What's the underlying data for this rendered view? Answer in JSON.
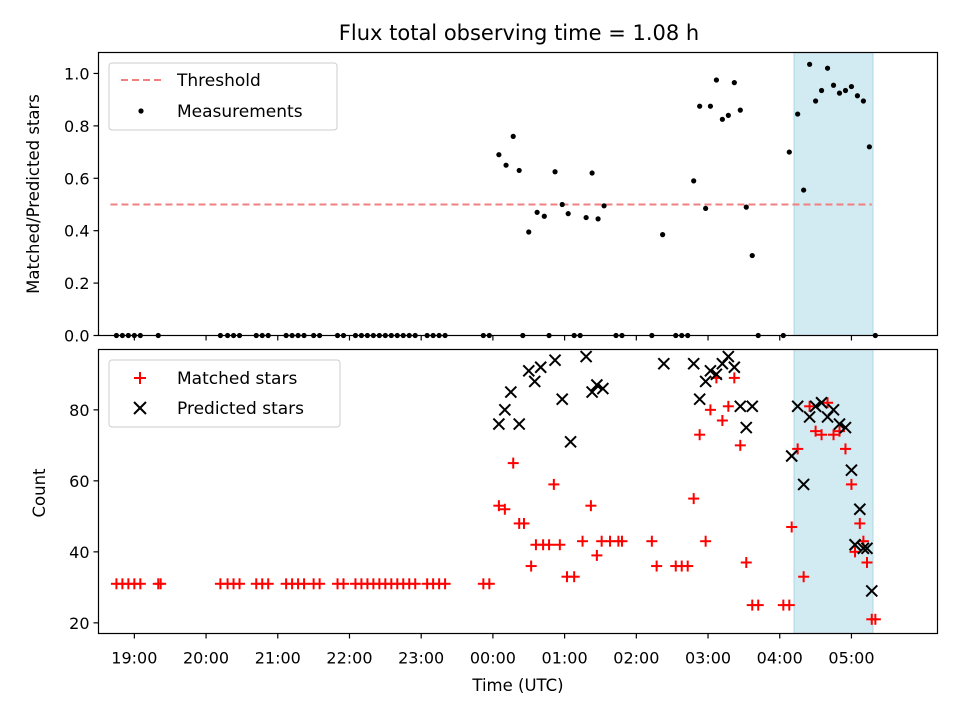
{
  "chart_data": [
    {
      "type": "scatter",
      "title": "Flux total observing time = 1.08 h",
      "ylabel": "Matched/Predicted stars",
      "ylim": [
        0,
        1.08
      ],
      "yticks": [
        "0.0",
        "0.2",
        "0.4",
        "0.6",
        "0.8",
        "1.0"
      ],
      "threshold": {
        "name": "Threshold",
        "value": 0.5,
        "x_range": [
          "18:40",
          "05:17"
        ],
        "color": "#f08080"
      },
      "highlight_span": {
        "x": [
          "04:12",
          "05:18"
        ],
        "color": "#add8e6"
      },
      "legend": "top-left",
      "series": [
        {
          "name": "Measurements",
          "color": "#000000",
          "points": [
            [
              "18:45",
              0
            ],
            [
              "18:50",
              0
            ],
            [
              "18:55",
              0
            ],
            [
              "19:00",
              0
            ],
            [
              "19:05",
              0
            ],
            [
              "19:20",
              0
            ],
            [
              "20:12",
              0
            ],
            [
              "20:18",
              0
            ],
            [
              "20:23",
              0
            ],
            [
              "20:28",
              0
            ],
            [
              "20:42",
              0
            ],
            [
              "20:47",
              0
            ],
            [
              "20:52",
              0
            ],
            [
              "21:07",
              0
            ],
            [
              "21:12",
              0
            ],
            [
              "21:17",
              0
            ],
            [
              "21:22",
              0
            ],
            [
              "21:30",
              0
            ],
            [
              "21:35",
              0
            ],
            [
              "21:50",
              0
            ],
            [
              "21:55",
              0
            ],
            [
              "22:05",
              0
            ],
            [
              "22:10",
              0
            ],
            [
              "22:15",
              0
            ],
            [
              "22:20",
              0
            ],
            [
              "22:25",
              0
            ],
            [
              "22:30",
              0
            ],
            [
              "22:35",
              0
            ],
            [
              "22:40",
              0
            ],
            [
              "22:45",
              0
            ],
            [
              "22:50",
              0
            ],
            [
              "22:55",
              0
            ],
            [
              "23:05",
              0
            ],
            [
              "23:10",
              0
            ],
            [
              "23:15",
              0
            ],
            [
              "23:20",
              0
            ],
            [
              "23:52",
              0
            ],
            [
              "23:57",
              0
            ],
            [
              "00:05",
              0.69
            ],
            [
              "00:11",
              0.65
            ],
            [
              "00:17",
              0.76
            ],
            [
              "00:22",
              0.63
            ],
            [
              "00:25",
              0
            ],
            [
              "00:30",
              0.395
            ],
            [
              "00:37",
              0.47
            ],
            [
              "00:43",
              0.455
            ],
            [
              "00:47",
              0
            ],
            [
              "00:52",
              0.625
            ],
            [
              "00:58",
              0.5
            ],
            [
              "01:03",
              0.465
            ],
            [
              "01:08",
              0
            ],
            [
              "01:13",
              0
            ],
            [
              "01:18",
              0.45
            ],
            [
              "01:23",
              0.62
            ],
            [
              "01:28",
              0.445
            ],
            [
              "01:33",
              0.495
            ],
            [
              "01:43",
              0
            ],
            [
              "01:48",
              0
            ],
            [
              "02:13",
              0
            ],
            [
              "02:22",
              0.385
            ],
            [
              "02:33",
              0
            ],
            [
              "02:38",
              0
            ],
            [
              "02:43",
              0
            ],
            [
              "02:48",
              0.59
            ],
            [
              "02:53",
              0.875
            ],
            [
              "02:58",
              0.485
            ],
            [
              "03:02",
              0.875
            ],
            [
              "03:07",
              0.975
            ],
            [
              "03:12",
              0.825
            ],
            [
              "03:17",
              0.84
            ],
            [
              "03:22",
              0.965
            ],
            [
              "03:27",
              0.86
            ],
            [
              "03:32",
              0.49
            ],
            [
              "03:37",
              0.305
            ],
            [
              "03:42",
              0
            ],
            [
              "04:03",
              0
            ],
            [
              "04:08",
              0.7
            ],
            [
              "04:15",
              0.845
            ],
            [
              "04:20",
              0.555
            ],
            [
              "04:25",
              1.035
            ],
            [
              "04:30",
              0.895
            ],
            [
              "04:35",
              0.935
            ],
            [
              "04:40",
              1.02
            ],
            [
              "04:45",
              0.955
            ],
            [
              "04:50",
              0.925
            ],
            [
              "04:55",
              0.935
            ],
            [
              "05:00",
              0.95
            ],
            [
              "05:05",
              0.915
            ],
            [
              "05:10",
              0.895
            ],
            [
              "05:15",
              0.72
            ],
            [
              "05:20",
              0
            ]
          ]
        }
      ]
    },
    {
      "type": "scatter",
      "xlabel": "Time (UTC)",
      "ylabel": "Count",
      "xticks": [
        "19:00",
        "20:00",
        "21:00",
        "22:00",
        "23:00",
        "00:00",
        "01:00",
        "02:00",
        "03:00",
        "04:00",
        "05:00"
      ],
      "ylim": [
        17,
        97
      ],
      "yticks": [
        "20",
        "40",
        "60",
        "80"
      ],
      "highlight_span": {
        "x": [
          "04:12",
          "05:18"
        ],
        "color": "#add8e6"
      },
      "legend": "top-left",
      "series": [
        {
          "name": "Matched stars",
          "color": "#ff0000",
          "marker": "plus",
          "points": [
            [
              "18:45",
              31
            ],
            [
              "18:50",
              31
            ],
            [
              "18:55",
              31
            ],
            [
              "19:00",
              31
            ],
            [
              "19:05",
              31
            ],
            [
              "19:20",
              31
            ],
            [
              "19:22",
              31
            ],
            [
              "20:12",
              31
            ],
            [
              "20:18",
              31
            ],
            [
              "20:23",
              31
            ],
            [
              "20:28",
              31
            ],
            [
              "20:42",
              31
            ],
            [
              "20:47",
              31
            ],
            [
              "20:52",
              31
            ],
            [
              "21:07",
              31
            ],
            [
              "21:12",
              31
            ],
            [
              "21:17",
              31
            ],
            [
              "21:22",
              31
            ],
            [
              "21:30",
              31
            ],
            [
              "21:35",
              31
            ],
            [
              "21:50",
              31
            ],
            [
              "21:55",
              31
            ],
            [
              "22:05",
              31
            ],
            [
              "22:10",
              31
            ],
            [
              "22:15",
              31
            ],
            [
              "22:20",
              31
            ],
            [
              "22:25",
              31
            ],
            [
              "22:30",
              31
            ],
            [
              "22:35",
              31
            ],
            [
              "22:40",
              31
            ],
            [
              "22:45",
              31
            ],
            [
              "22:50",
              31
            ],
            [
              "22:55",
              31
            ],
            [
              "23:05",
              31
            ],
            [
              "23:10",
              31
            ],
            [
              "23:15",
              31
            ],
            [
              "23:20",
              31
            ],
            [
              "23:52",
              31
            ],
            [
              "23:57",
              31
            ],
            [
              "00:05",
              53
            ],
            [
              "00:10",
              52
            ],
            [
              "00:17",
              65
            ],
            [
              "00:22",
              48
            ],
            [
              "00:26",
              48
            ],
            [
              "00:32",
              36
            ],
            [
              "00:36",
              42
            ],
            [
              "00:42",
              42
            ],
            [
              "00:47",
              42
            ],
            [
              "00:51",
              59
            ],
            [
              "00:56",
              42
            ],
            [
              "01:02",
              33
            ],
            [
              "01:08",
              33
            ],
            [
              "01:15",
              43
            ],
            [
              "01:22",
              53
            ],
            [
              "01:27",
              39
            ],
            [
              "01:31",
              43
            ],
            [
              "01:38",
              43
            ],
            [
              "01:45",
              43
            ],
            [
              "01:48",
              43
            ],
            [
              "02:13",
              43
            ],
            [
              "02:17",
              36
            ],
            [
              "02:33",
              36
            ],
            [
              "02:38",
              36
            ],
            [
              "02:43",
              36
            ],
            [
              "02:48",
              55
            ],
            [
              "02:53",
              73
            ],
            [
              "02:58",
              43
            ],
            [
              "03:02",
              80
            ],
            [
              "03:07",
              89
            ],
            [
              "03:12",
              77
            ],
            [
              "03:17",
              81
            ],
            [
              "03:22",
              89
            ],
            [
              "03:27",
              70
            ],
            [
              "03:32",
              37
            ],
            [
              "03:37",
              25
            ],
            [
              "03:42",
              25
            ],
            [
              "04:03",
              25
            ],
            [
              "04:08",
              25
            ],
            [
              "04:10",
              47
            ],
            [
              "04:15",
              69
            ],
            [
              "04:20",
              33
            ],
            [
              "04:25",
              81
            ],
            [
              "04:30",
              74
            ],
            [
              "04:35",
              73
            ],
            [
              "04:40",
              82
            ],
            [
              "04:45",
              73
            ],
            [
              "04:50",
              74
            ],
            [
              "04:55",
              69
            ],
            [
              "05:00",
              59
            ],
            [
              "05:03",
              40
            ],
            [
              "05:07",
              48
            ],
            [
              "05:10",
              43
            ],
            [
              "05:13",
              37
            ],
            [
              "05:17",
              21
            ],
            [
              "05:20",
              21
            ]
          ]
        },
        {
          "name": "Predicted stars",
          "color": "#000000",
          "marker": "x",
          "points": [
            [
              "00:05",
              76
            ],
            [
              "00:10",
              80
            ],
            [
              "00:15",
              85
            ],
            [
              "00:22",
              76
            ],
            [
              "00:30",
              91
            ],
            [
              "00:35",
              88
            ],
            [
              "00:40",
              92
            ],
            [
              "00:52",
              94
            ],
            [
              "00:58",
              83
            ],
            [
              "01:05",
              71
            ],
            [
              "01:18",
              95
            ],
            [
              "01:23",
              85
            ],
            [
              "01:27",
              87
            ],
            [
              "01:32",
              86
            ],
            [
              "02:23",
              93
            ],
            [
              "02:48",
              93
            ],
            [
              "02:53",
              83
            ],
            [
              "02:58",
              88
            ],
            [
              "03:02",
              91
            ],
            [
              "03:07",
              90
            ],
            [
              "03:12",
              93
            ],
            [
              "03:17",
              95
            ],
            [
              "03:22",
              92
            ],
            [
              "03:27",
              81
            ],
            [
              "03:32",
              75
            ],
            [
              "03:37",
              81
            ],
            [
              "04:10",
              67
            ],
            [
              "04:15",
              81
            ],
            [
              "04:20",
              59
            ],
            [
              "04:25",
              78
            ],
            [
              "04:30",
              81
            ],
            [
              "04:35",
              82
            ],
            [
              "04:40",
              78
            ],
            [
              "04:45",
              80
            ],
            [
              "04:50",
              76
            ],
            [
              "04:55",
              75
            ],
            [
              "05:00",
              63
            ],
            [
              "05:03",
              42
            ],
            [
              "05:07",
              52
            ],
            [
              "05:10",
              41
            ],
            [
              "05:13",
              41
            ],
            [
              "05:17",
              29
            ]
          ]
        }
      ]
    }
  ]
}
